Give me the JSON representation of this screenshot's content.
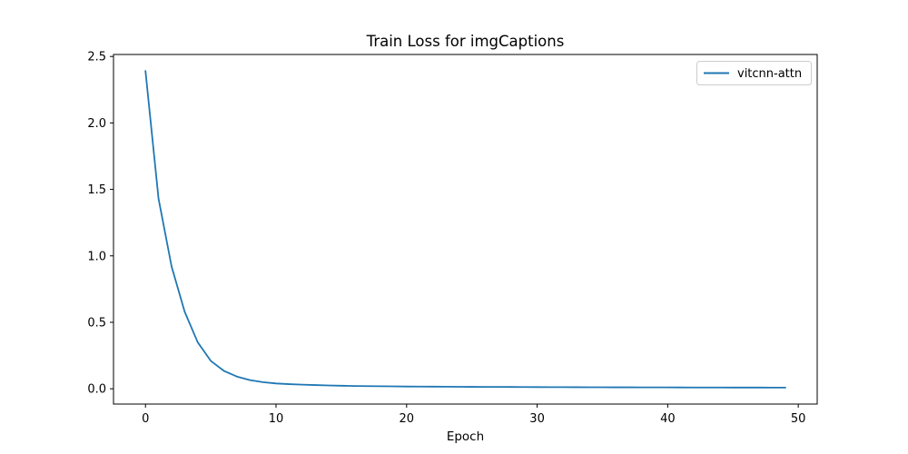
{
  "chart_data": {
    "type": "line",
    "title": "Train Loss for imgCaptions",
    "xlabel": "Epoch",
    "ylabel": "",
    "xlim": [
      -2.45,
      51.45
    ],
    "ylim": [
      -0.115,
      2.515
    ],
    "xticks": [
      0,
      10,
      20,
      30,
      40,
      50
    ],
    "yticks": [
      0.0,
      0.5,
      1.0,
      1.5,
      2.0,
      2.5
    ],
    "xtick_labels": [
      "0",
      "10",
      "20",
      "30",
      "40",
      "50"
    ],
    "ytick_labels": [
      "0.0",
      "0.5",
      "1.0",
      "1.5",
      "2.0",
      "2.5"
    ],
    "grid": false,
    "legend_position": "upper right",
    "series": [
      {
        "name": "vitcnn-attn",
        "color": "#1f77b4",
        "x": [
          0,
          1,
          2,
          3,
          4,
          5,
          6,
          7,
          8,
          9,
          10,
          11,
          12,
          13,
          14,
          15,
          16,
          17,
          18,
          19,
          20,
          21,
          22,
          23,
          24,
          25,
          26,
          27,
          28,
          29,
          30,
          31,
          32,
          33,
          34,
          35,
          36,
          37,
          38,
          39,
          40,
          41,
          42,
          43,
          44,
          45,
          46,
          47,
          48,
          49
        ],
        "y": [
          2.39,
          1.43,
          0.92,
          0.58,
          0.35,
          0.21,
          0.135,
          0.092,
          0.065,
          0.05,
          0.04,
          0.035,
          0.031,
          0.028,
          0.025,
          0.023,
          0.021,
          0.02,
          0.019,
          0.018,
          0.017,
          0.0165,
          0.016,
          0.0155,
          0.015,
          0.0145,
          0.014,
          0.0137,
          0.0134,
          0.013,
          0.0127,
          0.0124,
          0.0121,
          0.0118,
          0.0115,
          0.0113,
          0.0111,
          0.0109,
          0.0107,
          0.0105,
          0.0103,
          0.0101,
          0.0099,
          0.0097,
          0.0095,
          0.0093,
          0.0092,
          0.0091,
          0.009,
          0.0089
        ]
      }
    ]
  }
}
